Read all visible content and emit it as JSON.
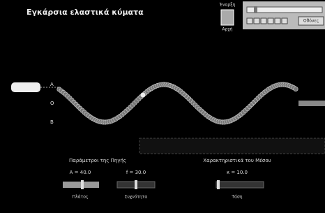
{
  "header": {
    "title": "Εγκάρσια ελαστικά κύματα"
  },
  "start_control": {
    "top_label": "Έναρξη",
    "bottom_label": "Αρχή"
  },
  "toolbar": {
    "button": "Οθόνες"
  },
  "points": [
    "A",
    "O",
    "B"
  ],
  "source": {
    "title": "Παράμετροι της Πηγής",
    "sliders": [
      {
        "readout": "A = 40.0",
        "label": "Πλάτος"
      },
      {
        "readout": "f = 30.0",
        "label": "Συχνότητα"
      }
    ]
  },
  "medium": {
    "title": "Χαρακτηριστικά του Μέσου",
    "sliders": [
      {
        "readout": "κ = 10.0",
        "label": "Τάση"
      }
    ]
  }
}
